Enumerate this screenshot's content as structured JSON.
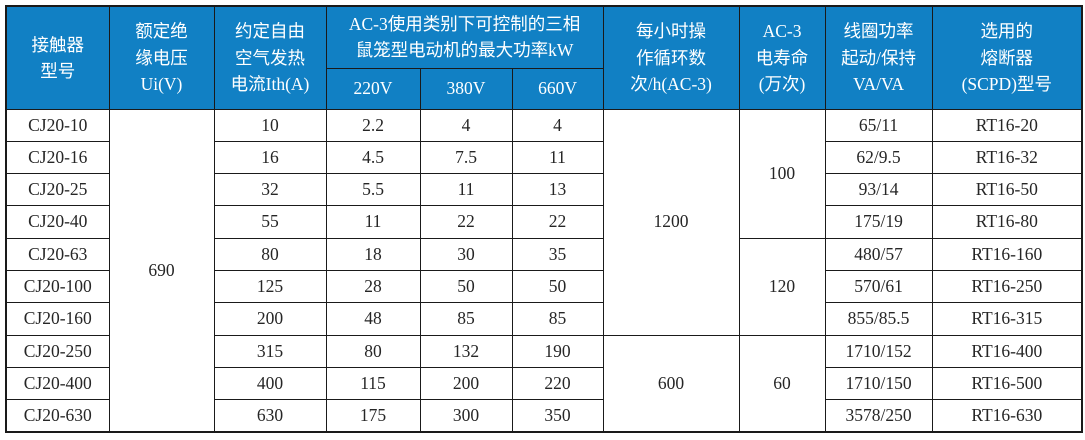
{
  "colors": {
    "header_bg": "#1180c4",
    "header_text": "#ffffff",
    "border": "#1a1a1a",
    "body_text": "#262626",
    "page_bg": "#ffffff"
  },
  "header": {
    "model": "接触器\n型号",
    "insulation_voltage": "额定绝\n缘电压\nUi(V)",
    "thermal_current": "约定自由\n空气发热\n电流Ith(A)",
    "ac3_power_group": "AC-3使用类别下可控制的三相\n鼠笼型电动机的最大功率kW",
    "v220": "220V",
    "v380": "380V",
    "v660": "660V",
    "cycles_per_hour": "每小时操\n作循环数\n次/h(AC-3)",
    "electrical_life": "AC-3\n电寿命\n(万次)",
    "coil_power": "线圈功率\n起动/保持\nVA/VA",
    "fuse_type": "选用的\n熔断器\n(SCPD)型号"
  },
  "merged": {
    "insulation_voltage_all_rows": "690",
    "cycles_cj20_10_to_160": "1200",
    "cycles_cj20_250_to_630": "600",
    "life_cj20_10_to_40": "100",
    "life_cj20_63_to_160": "120",
    "life_cj20_250_to_630": "60"
  },
  "rows": [
    {
      "model": "CJ20-10",
      "ith": "10",
      "p220": "2.2",
      "p380": "4",
      "p660": "4",
      "coil": "65/11",
      "fuse": "RT16-20"
    },
    {
      "model": "CJ20-16",
      "ith": "16",
      "p220": "4.5",
      "p380": "7.5",
      "p660": "11",
      "coil": "62/9.5",
      "fuse": "RT16-32"
    },
    {
      "model": "CJ20-25",
      "ith": "32",
      "p220": "5.5",
      "p380": "11",
      "p660": "13",
      "coil": "93/14",
      "fuse": "RT16-50"
    },
    {
      "model": "CJ20-40",
      "ith": "55",
      "p220": "11",
      "p380": "22",
      "p660": "22",
      "coil": "175/19",
      "fuse": "RT16-80"
    },
    {
      "model": "CJ20-63",
      "ith": "80",
      "p220": "18",
      "p380": "30",
      "p660": "35",
      "coil": "480/57",
      "fuse": "RT16-160"
    },
    {
      "model": "CJ20-100",
      "ith": "125",
      "p220": "28",
      "p380": "50",
      "p660": "50",
      "coil": "570/61",
      "fuse": "RT16-250"
    },
    {
      "model": "CJ20-160",
      "ith": "200",
      "p220": "48",
      "p380": "85",
      "p660": "85",
      "coil": "855/85.5",
      "fuse": "RT16-315"
    },
    {
      "model": "CJ20-250",
      "ith": "315",
      "p220": "80",
      "p380": "132",
      "p660": "190",
      "coil": "1710/152",
      "fuse": "RT16-400"
    },
    {
      "model": "CJ20-400",
      "ith": "400",
      "p220": "115",
      "p380": "200",
      "p660": "220",
      "coil": "1710/150",
      "fuse": "RT16-500"
    },
    {
      "model": "CJ20-630",
      "ith": "630",
      "p220": "175",
      "p380": "300",
      "p660": "350",
      "coil": "3578/250",
      "fuse": "RT16-630"
    }
  ]
}
